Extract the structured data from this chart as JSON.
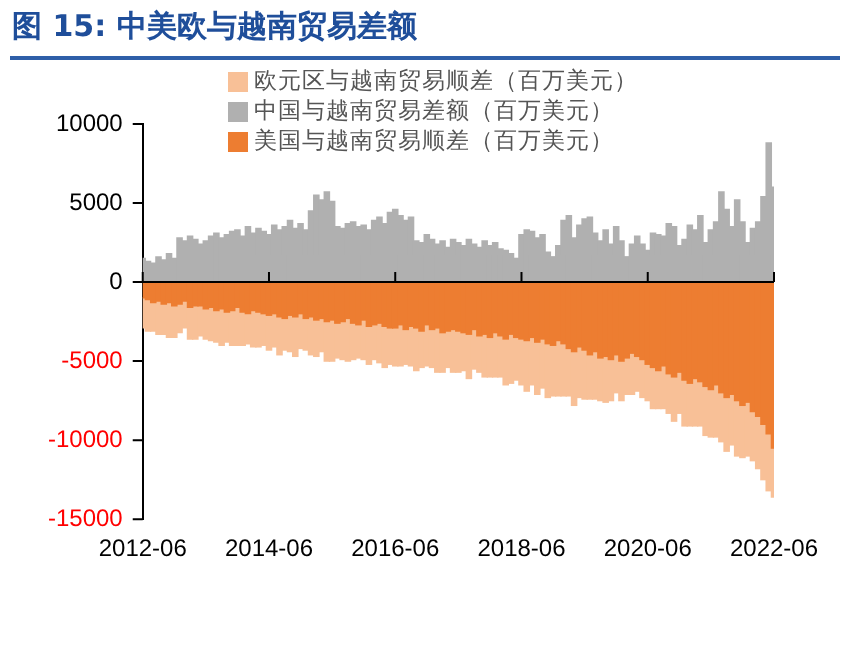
{
  "chart_data": {
    "type": "bar",
    "title": "图 15: 中美欧与越南贸易差额",
    "stacked": true,
    "legend": "top",
    "x": [
      "2012-06",
      "2012-07",
      "2012-08",
      "2012-09",
      "2012-10",
      "2012-11",
      "2012-12",
      "2013-01",
      "2013-02",
      "2013-03",
      "2013-04",
      "2013-05",
      "2013-06",
      "2013-07",
      "2013-08",
      "2013-09",
      "2013-10",
      "2013-11",
      "2013-12",
      "2014-01",
      "2014-02",
      "2014-03",
      "2014-04",
      "2014-05",
      "2014-06",
      "2014-07",
      "2014-08",
      "2014-09",
      "2014-10",
      "2014-11",
      "2014-12",
      "2015-01",
      "2015-02",
      "2015-03",
      "2015-04",
      "2015-05",
      "2015-06",
      "2015-07",
      "2015-08",
      "2015-09",
      "2015-10",
      "2015-11",
      "2015-12",
      "2016-01",
      "2016-02",
      "2016-03",
      "2016-04",
      "2016-05",
      "2016-06",
      "2016-07",
      "2016-08",
      "2016-09",
      "2016-10",
      "2016-11",
      "2016-12",
      "2017-01",
      "2017-02",
      "2017-03",
      "2017-04",
      "2017-05",
      "2017-06",
      "2017-07",
      "2017-08",
      "2017-09",
      "2017-10",
      "2017-11",
      "2017-12",
      "2018-01",
      "2018-02",
      "2018-03",
      "2018-04",
      "2018-05",
      "2018-06",
      "2018-07",
      "2018-08",
      "2018-09",
      "2018-10",
      "2018-11",
      "2018-12",
      "2019-01",
      "2019-02",
      "2019-03",
      "2019-04",
      "2019-05",
      "2019-06",
      "2019-07",
      "2019-08",
      "2019-09",
      "2019-10",
      "2019-11",
      "2019-12",
      "2020-01",
      "2020-02",
      "2020-03",
      "2020-04",
      "2020-05",
      "2020-06",
      "2020-07",
      "2020-08",
      "2020-09",
      "2020-10",
      "2020-11",
      "2020-12",
      "2021-01",
      "2021-02",
      "2021-03",
      "2021-04",
      "2021-05",
      "2021-06",
      "2021-07",
      "2021-08",
      "2021-09",
      "2021-10",
      "2021-11",
      "2021-12",
      "2022-01",
      "2022-02",
      "2022-03",
      "2022-04",
      "2022-05",
      "2022-06"
    ],
    "series": [
      {
        "name": "美国与越南贸易顺差（百万美元）",
        "color": "#ed7d31",
        "values": [
          -1000,
          -1100,
          -1300,
          -1200,
          -1400,
          -1300,
          -1500,
          -1400,
          -1200,
          -1600,
          -1500,
          -1500,
          -1700,
          -1600,
          -1800,
          -1700,
          -1900,
          -1800,
          -1600,
          -1900,
          -2000,
          -1800,
          -1900,
          -2000,
          -2100,
          -2000,
          -2200,
          -2300,
          -2100,
          -2200,
          -2000,
          -2300,
          -2200,
          -2400,
          -2300,
          -2500,
          -2400,
          -2600,
          -2500,
          -2300,
          -2600,
          -2700,
          -2400,
          -2800,
          -2700,
          -2600,
          -2800,
          -2900,
          -2900,
          -2700,
          -3000,
          -2800,
          -2900,
          -3100,
          -2700,
          -3000,
          -2900,
          -3200,
          -3100,
          -3000,
          -3100,
          -3200,
          -3300,
          -3000,
          -3400,
          -3300,
          -3500,
          -3200,
          -3400,
          -3600,
          -3300,
          -3500,
          -3600,
          -3700,
          -3500,
          -3800,
          -3600,
          -3900,
          -4000,
          -3700,
          -3900,
          -4200,
          -4400,
          -4100,
          -4300,
          -4600,
          -4400,
          -4800,
          -4700,
          -4900,
          -4600,
          -5000,
          -4800,
          -4500,
          -4700,
          -4900,
          -5200,
          -5400,
          -5600,
          -5300,
          -5800,
          -6000,
          -5700,
          -6200,
          -6400,
          -6100,
          -6300,
          -6600,
          -6800,
          -6500,
          -7000,
          -7300,
          -7100,
          -7500,
          -7800,
          -7600,
          -8200,
          -8500,
          -9000,
          -9600,
          -10500
        ]
      },
      {
        "name": "中国与越南贸易差额（百万美元）",
        "color": "#b0b0b0",
        "values": [
          1500,
          1300,
          1200,
          1600,
          1400,
          1800,
          1500,
          2800,
          2600,
          2900,
          2700,
          2400,
          2600,
          2900,
          3100,
          2800,
          3000,
          3200,
          3300,
          2900,
          3500,
          3100,
          3400,
          3200,
          3000,
          3600,
          3300,
          3500,
          3900,
          3400,
          3700,
          3300,
          4500,
          5500,
          5200,
          5700,
          5100,
          3500,
          3400,
          3700,
          3800,
          3500,
          3600,
          3300,
          3900,
          4100,
          3700,
          4400,
          4600,
          4200,
          3900,
          4100,
          2600,
          2500,
          3000,
          2700,
          2400,
          2600,
          2200,
          2700,
          2500,
          2300,
          2700,
          2400,
          2200,
          2600,
          2300,
          2500,
          2100,
          2000,
          1800,
          1500,
          3000,
          3300,
          3200,
          2800,
          3000,
          1900,
          1600,
          2300,
          3900,
          4200,
          2800,
          3600,
          4000,
          4100,
          3100,
          2600,
          3300,
          2400,
          3500,
          2600,
          1600,
          2400,
          2900,
          2400,
          2000,
          3100,
          3000,
          2900,
          3700,
          3500,
          2300,
          2700,
          3600,
          3300,
          4200,
          2500,
          3300,
          3800,
          5700,
          4600,
          3500,
          5200,
          3800,
          2500,
          3400,
          3800,
          5400,
          8800,
          6000
        ]
      },
      {
        "name": "欧元区与越南贸易顺差（百万美元）",
        "color": "#f8c097",
        "values": [
          -1900,
          -2000,
          -1800,
          -2100,
          -1900,
          -2200,
          -2000,
          -1800,
          -1700,
          -2000,
          -2100,
          -1900,
          -1900,
          -2100,
          -2000,
          -2300,
          -1900,
          -2200,
          -2400,
          -2100,
          -1900,
          -2300,
          -2200,
          -2000,
          -2200,
          -2100,
          -2400,
          -2000,
          -2300,
          -2500,
          -2200,
          -2000,
          -2400,
          -2300,
          -2100,
          -2500,
          -2600,
          -2200,
          -2400,
          -2700,
          -2300,
          -2100,
          -2500,
          -2400,
          -2200,
          -2500,
          -2600,
          -2300,
          -2400,
          -2600,
          -2200,
          -2500,
          -2700,
          -2300,
          -2600,
          -2400,
          -2800,
          -2500,
          -2300,
          -2700,
          -2600,
          -2400,
          -2800,
          -2500,
          -2300,
          -2700,
          -2500,
          -2800,
          -2600,
          -2900,
          -3100,
          -2700,
          -2900,
          -3200,
          -3000,
          -3300,
          -3100,
          -3400,
          -3200,
          -3500,
          -3300,
          -3000,
          -3400,
          -3200,
          -3100,
          -2800,
          -3000,
          -2700,
          -2900,
          -2600,
          -2400,
          -2500,
          -2300,
          -2600,
          -2200,
          -2400,
          -2300,
          -2600,
          -2400,
          -2700,
          -2500,
          -2800,
          -2600,
          -2900,
          -2700,
          -3000,
          -2800,
          -3100,
          -3000,
          -3300,
          -3100,
          -3400,
          -3200,
          -3500,
          -3300,
          -3400,
          -3100,
          -3300,
          -3500,
          -3600,
          -3100
        ]
      }
    ],
    "xlim": [
      "2012-06",
      "2022-06"
    ],
    "xticks": [
      "2012-06",
      "2014-06",
      "2016-06",
      "2018-06",
      "2020-06",
      "2022-06"
    ],
    "ylim": [
      -15000,
      10000
    ],
    "yticks": [
      -15000,
      -10000,
      -5000,
      0,
      5000,
      10000
    ]
  }
}
